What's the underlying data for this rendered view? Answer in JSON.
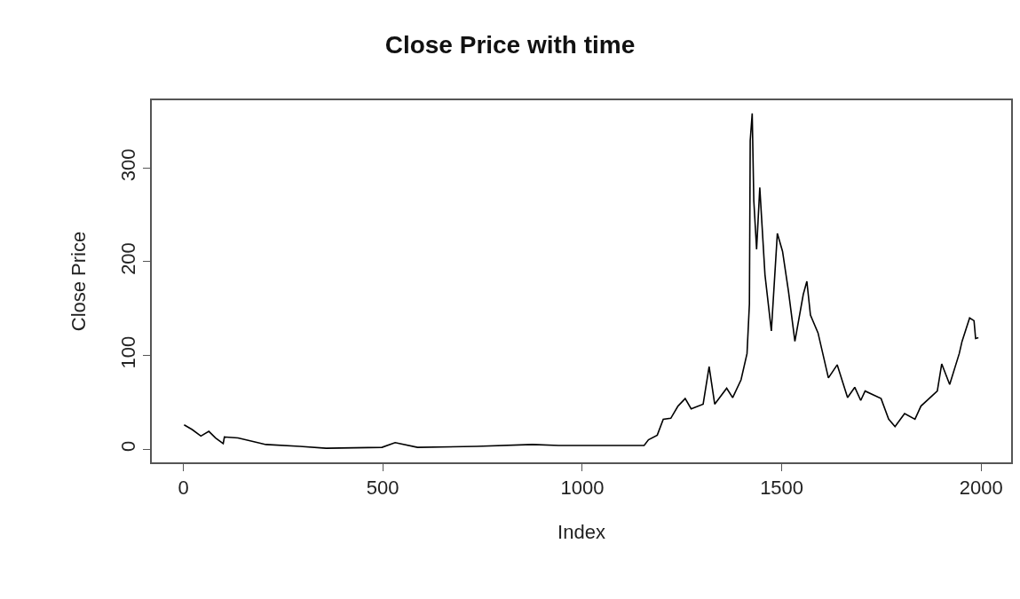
{
  "chart_data": {
    "type": "line",
    "title": "Close Price with time",
    "xlabel": "Index",
    "ylabel": "Close Price",
    "xlim": [
      -79,
      2075
    ],
    "xticks": [
      0,
      500,
      1000,
      1500,
      2000
    ],
    "ylim": [
      -14,
      372
    ],
    "yticks": [
      0,
      100,
      200,
      300
    ],
    "grid": false,
    "marker": "none",
    "line_style": "solid",
    "x": [
      2,
      22,
      44,
      64,
      81,
      100,
      103,
      137,
      177,
      207,
      292,
      358,
      498,
      531,
      587,
      735,
      875,
      941,
      985,
      1155,
      1166,
      1188,
      1203,
      1222,
      1240,
      1258,
      1273,
      1303,
      1318,
      1332,
      1362,
      1377,
      1398,
      1413,
      1419,
      1421,
      1426,
      1430,
      1437,
      1445,
      1458,
      1474,
      1489,
      1502,
      1517,
      1533,
      1554,
      1563,
      1572,
      1591,
      1617,
      1639,
      1665,
      1683,
      1698,
      1709,
      1749,
      1768,
      1784,
      1808,
      1834,
      1849,
      1890,
      1901,
      1921,
      1945,
      1952,
      1971,
      1982,
      1986,
      1993
    ],
    "series": [
      {
        "color": "#000000",
        "values": [
          26,
          21,
          14,
          19,
          12,
          6,
          13,
          12,
          8,
          5,
          3,
          1,
          2,
          7,
          2,
          3,
          5,
          4,
          4,
          4,
          10,
          15,
          32,
          33,
          46,
          54,
          43,
          48,
          88,
          48,
          65,
          55,
          74,
          102,
          155,
          329,
          358,
          265,
          213,
          279,
          186,
          126,
          230,
          211,
          168,
          115,
          165,
          179,
          143,
          124,
          76,
          90,
          55,
          66,
          52,
          62,
          54,
          32,
          24,
          38,
          32,
          46,
          62,
          91,
          69,
          102,
          115,
          140,
          137,
          118,
          119
        ]
      }
    ]
  }
}
